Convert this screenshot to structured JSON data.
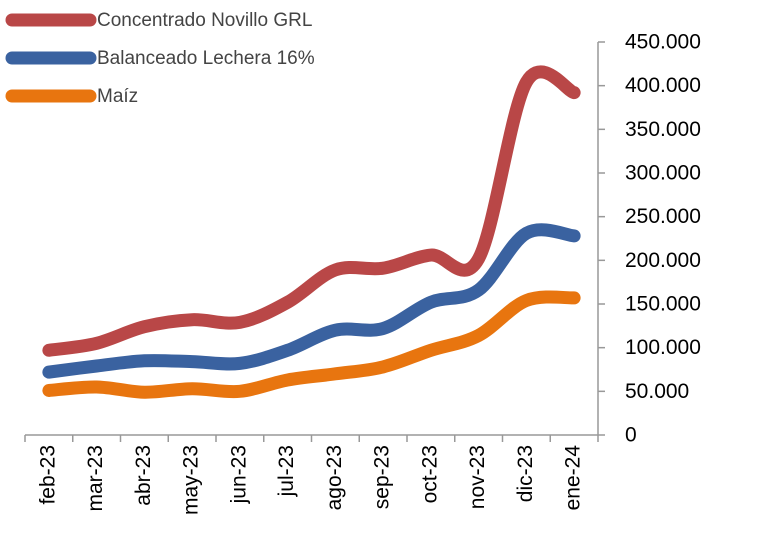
{
  "chart_data": {
    "type": "line",
    "categories": [
      "feb-23",
      "mar-23",
      "abr-23",
      "may-23",
      "jun-23",
      "jul-23",
      "ago-23",
      "sep-23",
      "oct-23",
      "nov-23",
      "dic-23",
      "ene-24"
    ],
    "series": [
      {
        "name": "Concentrado Novillo GRL",
        "color": "#b94747",
        "values": [
          97000,
          105000,
          124000,
          132000,
          129000,
          152000,
          189000,
          191000,
          206000,
          202000,
          404000,
          392000
        ]
      },
      {
        "name": "Balanceado Lechera 16%",
        "color": "#3a62a0",
        "values": [
          72000,
          79000,
          85000,
          84000,
          82000,
          97000,
          120000,
          122000,
          152000,
          166000,
          231000,
          228000
        ]
      },
      {
        "name": "Maíz",
        "color": "#e8750f",
        "values": [
          51000,
          55000,
          49000,
          53000,
          50000,
          63000,
          70000,
          78000,
          97000,
          114000,
          154000,
          157000
        ]
      }
    ],
    "ylim": [
      0,
      450000
    ],
    "yticks": [
      0,
      {
        "value": 50000,
        "label": "50.000"
      },
      {
        "value": 100000,
        "label": "100.000"
      },
      {
        "value": 150000,
        "label": "150.000"
      },
      {
        "value": 200000,
        "label": "200.000"
      },
      {
        "value": 250000,
        "label": "250.000"
      },
      {
        "value": 300000,
        "label": "300.000"
      },
      {
        "value": 350000,
        "label": "350.000"
      },
      {
        "value": 400000,
        "label": "400.000"
      },
      {
        "value": 450000,
        "label": "450.000"
      }
    ],
    "y_axis_side": "right",
    "smooth": true
  }
}
